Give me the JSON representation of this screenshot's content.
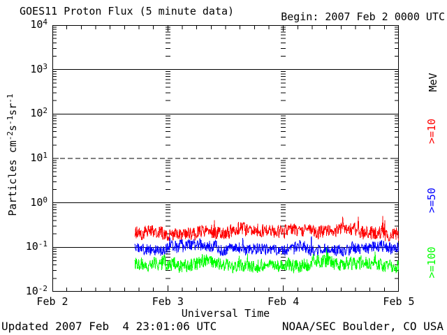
{
  "header": {
    "title": "GOES11 Proton Flux (5 minute data)",
    "begin_label": "Begin: 2007 Feb 2 0000 UTC"
  },
  "footer": {
    "updated": "Updated 2007 Feb  4 23:01:06 UTC",
    "source": "NOAA/SEC Boulder, CO USA"
  },
  "legend": {
    "unit_label": "MeV",
    "entries": [
      {
        "label": ">=10",
        "color": "#ff0000"
      },
      {
        "label": ">=50",
        "color": "#0000ff"
      },
      {
        "label": ">=100",
        "color": "#00ff00"
      }
    ]
  },
  "ylabel_parts": [
    {
      "t": "Particles cm"
    },
    {
      "t": "-2",
      "sup": true
    },
    {
      "t": "s"
    },
    {
      "t": "-1",
      "sup": true
    },
    {
      "t": "sr"
    },
    {
      "t": "-1",
      "sup": true
    }
  ],
  "chart_data": {
    "type": "line",
    "title": "GOES11 Proton Flux (5 minute data)",
    "xlabel": "Universal Time",
    "ylabel": "Particles cm^-2 s^-1 sr^-1",
    "x_start": "2007 Feb 2 0000 UTC",
    "x_end": "2007 Feb 5 0000 UTC",
    "x_tick_labels": [
      "Feb 2",
      "Feb 3",
      "Feb 4",
      "Feb 5"
    ],
    "x_minor_tick_hours": 3,
    "y_scale": "log10",
    "y_log10_range": [
      -2,
      4
    ],
    "y_tick_exponents": [
      4,
      3,
      2,
      1,
      0,
      -1,
      -2
    ],
    "grid": {
      "solid_decades": [
        3,
        2,
        0,
        -1
      ],
      "dashed_decades": [
        1
      ],
      "day_boundary_tick_columns": [
        1,
        2
      ]
    },
    "cadence_minutes": 5,
    "data_start_day_offset": 0.715,
    "data_end_day_offset": 3.0,
    "series": [
      {
        "name": ">=10 MeV",
        "color": "#ff0000",
        "approx_flux": {
          "median": 0.22,
          "min": 0.1,
          "max": 0.6
        },
        "log10_base": -0.65,
        "jitter": 0.15,
        "walk_step": 0.02,
        "walk_clamp": 0.08,
        "spike_prob": 0.025,
        "spike_mag": 0.3
      },
      {
        "name": ">=50 MeV",
        "color": "#0000ff",
        "approx_flux": {
          "median": 0.1,
          "min": 0.05,
          "max": 0.2
        },
        "log10_base": -1.0,
        "jitter": 0.13,
        "walk_step": 0.02,
        "walk_clamp": 0.07,
        "spike_prob": 0.015,
        "spike_mag": 0.22
      },
      {
        "name": ">=100 MeV",
        "color": "#00ff00",
        "approx_flux": {
          "median": 0.043,
          "min": 0.02,
          "max": 0.11
        },
        "log10_base": -1.37,
        "jitter": 0.15,
        "walk_step": 0.02,
        "walk_clamp": 0.07,
        "spike_prob": 0.02,
        "spike_mag": 0.28
      }
    ],
    "seed": 20070204
  }
}
